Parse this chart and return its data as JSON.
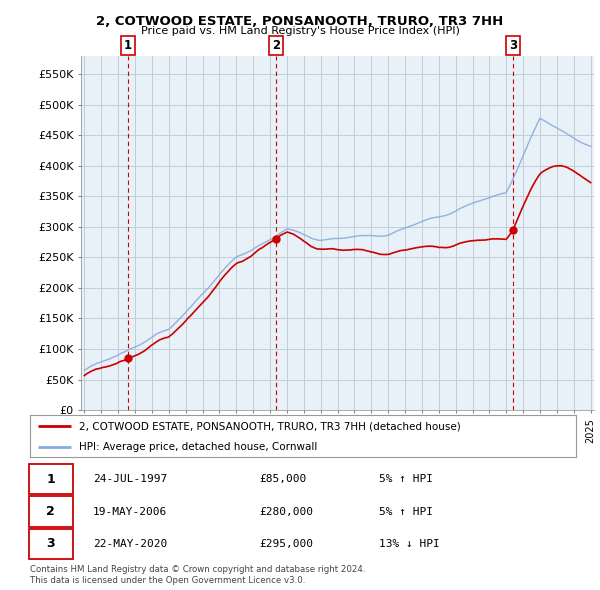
{
  "title": "2, COTWOOD ESTATE, PONSANOOTH, TRURO, TR3 7HH",
  "subtitle": "Price paid vs. HM Land Registry's House Price Index (HPI)",
  "ylabel_ticks": [
    "£0",
    "£50K",
    "£100K",
    "£150K",
    "£200K",
    "£250K",
    "£300K",
    "£350K",
    "£400K",
    "£450K",
    "£500K",
    "£550K"
  ],
  "ytick_vals": [
    0,
    50000,
    100000,
    150000,
    200000,
    250000,
    300000,
    350000,
    400000,
    450000,
    500000,
    550000
  ],
  "ylim": [
    0,
    580000
  ],
  "x_start_year": 1995,
  "x_end_year": 2025,
  "sale1_year": 1997.56,
  "sale1_price": 85000,
  "sale2_year": 2006.38,
  "sale2_price": 280000,
  "sale3_year": 2020.39,
  "sale3_price": 295000,
  "line_color_price": "#cc0000",
  "line_color_hpi": "#88aadd",
  "vline_color": "#cc0000",
  "dot_color": "#cc0000",
  "legend_label1": "2, COTWOOD ESTATE, PONSANOOTH, TRURO, TR3 7HH (detached house)",
  "legend_label2": "HPI: Average price, detached house, Cornwall",
  "footer": "Contains HM Land Registry data © Crown copyright and database right 2024.\nThis data is licensed under the Open Government Licence v3.0.",
  "bg_color": "#ffffff",
  "chart_bg": "#e8f0f8",
  "grid_color": "#c0ccd8",
  "table_rows": [
    {
      "num": "1",
      "date": "24-JUL-1997",
      "price": "£85,000",
      "pct": "5% ↑ HPI"
    },
    {
      "num": "2",
      "date": "19-MAY-2006",
      "price": "£280,000",
      "pct": "5% ↑ HPI"
    },
    {
      "num": "3",
      "date": "22-MAY-2020",
      "price": "£295,000",
      "pct": "13% ↓ HPI"
    }
  ]
}
